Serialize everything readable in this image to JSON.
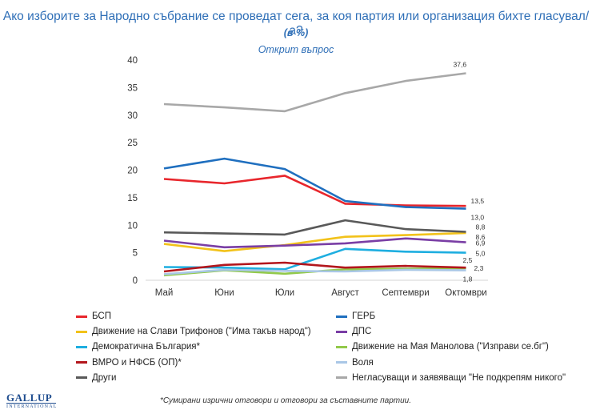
{
  "title": "Ако изборите за Народно събрание се проведат сега, за коя партия или организация бихте гласувал/а?",
  "subtitle_unit": "(в %)",
  "subtitle_question": "Открит въпрос",
  "footnote": "*Сумирани изрични отговори и отговори за съставните партии.",
  "logo": {
    "line1": "GALLUP",
    "line2": "INTERNATIONAL"
  },
  "chart_data": {
    "type": "line",
    "title": "Ако изборите за Народно събрание се проведат сега, за коя партия или организация бихте гласувал/а?",
    "ylabel": "в %",
    "ylim": [
      0,
      40
    ],
    "yticks": [
      0,
      5,
      10,
      15,
      20,
      25,
      30,
      35,
      40
    ],
    "categories": [
      "Май",
      "Юни",
      "Юли",
      "Август",
      "Септември",
      "Октомври"
    ],
    "series": [
      {
        "name": "БСП",
        "color": "#e8262c",
        "values": [
          18.4,
          17.6,
          19.0,
          13.9,
          13.6,
          13.5
        ],
        "end_label": "13,5"
      },
      {
        "name": "ГЕРБ",
        "color": "#1f6fbf",
        "values": [
          20.3,
          22.1,
          20.2,
          14.4,
          13.3,
          13.0
        ],
        "end_label": "13,0"
      },
      {
        "name": "Движение на Слави Трифонов (\"Има такъв народ\")",
        "color": "#f2c21a",
        "values": [
          6.6,
          5.3,
          6.4,
          7.9,
          8.2,
          8.6
        ],
        "end_label": "8,6"
      },
      {
        "name": "ДПС",
        "color": "#7a3ea5",
        "values": [
          7.2,
          6.0,
          6.3,
          6.7,
          7.6,
          6.9
        ],
        "end_label": "6,9"
      },
      {
        "name": "Демократична България*",
        "color": "#1eaee0",
        "values": [
          2.4,
          2.3,
          2.0,
          5.7,
          5.2,
          5.0
        ],
        "end_label": "5,0"
      },
      {
        "name": "Движение на Мая Манолова (\"Изправи се.бг\")",
        "color": "#92c94a",
        "values": [
          0.9,
          1.8,
          1.2,
          2.0,
          2.1,
          2.2
        ],
        "end_label": ""
      },
      {
        "name": "ВМРО и НФСБ (ОП)*",
        "color": "#b3161c",
        "values": [
          1.6,
          2.8,
          3.2,
          2.3,
          2.6,
          2.3
        ],
        "end_label": "2,3"
      },
      {
        "name": "Воля",
        "color": "#a9c7e6",
        "values": [
          1.1,
          1.9,
          1.7,
          1.6,
          1.9,
          1.8
        ],
        "end_label": "1,8"
      },
      {
        "name": "Други",
        "color": "#595959",
        "values": [
          8.7,
          8.5,
          8.3,
          10.9,
          9.3,
          8.8
        ],
        "end_label": "8,8"
      },
      {
        "name": "Негласуващи и заявяващи \"Не подкрепям никого\"",
        "color": "#a8a8a8",
        "values": [
          32.0,
          31.4,
          30.7,
          34.0,
          36.2,
          37.6
        ],
        "end_label": "37,6"
      }
    ],
    "extra_labels": [
      "2,5"
    ],
    "legend_position": "bottom"
  }
}
